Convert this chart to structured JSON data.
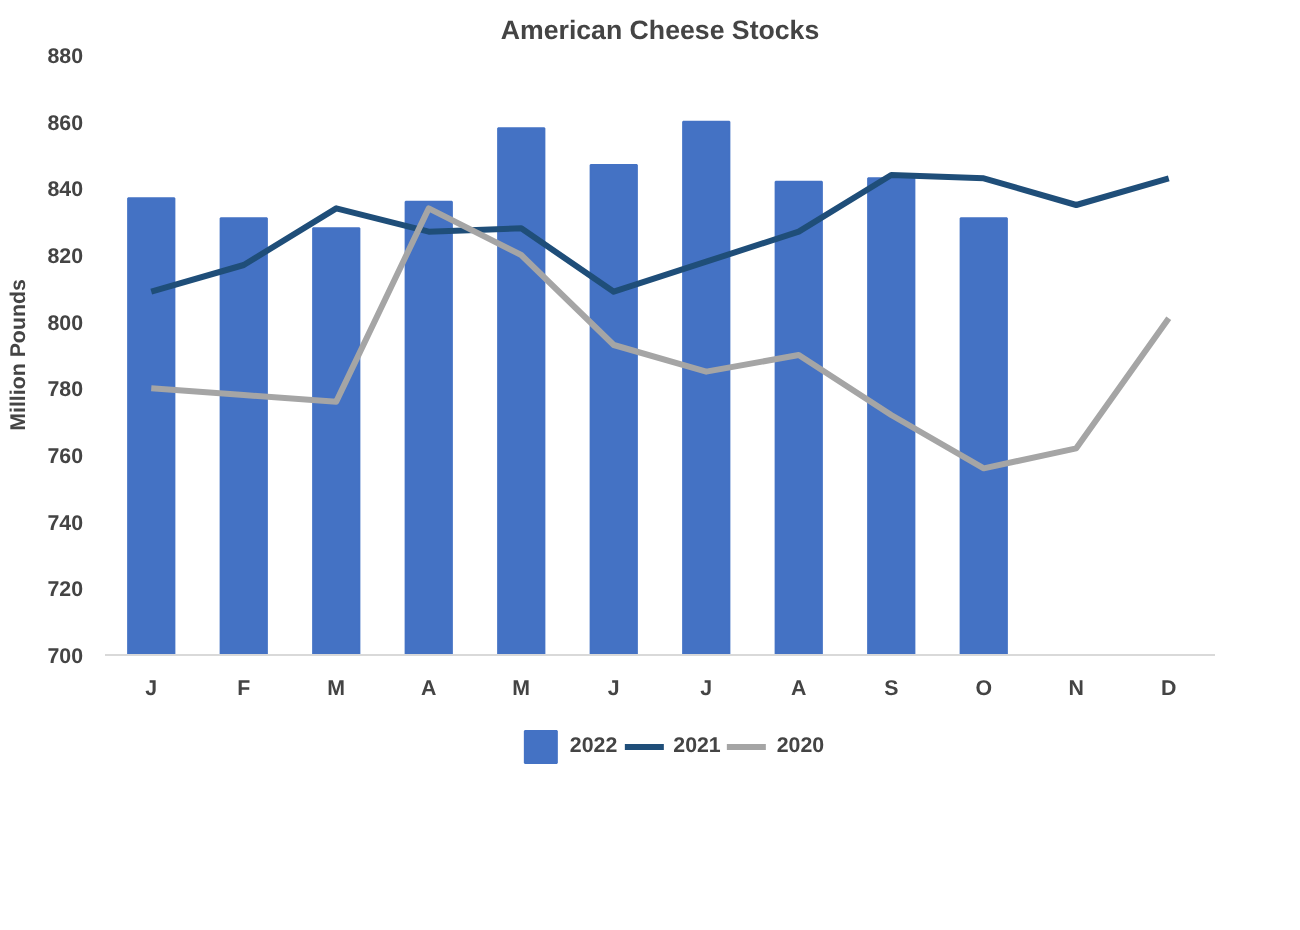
{
  "chart_data": {
    "type": "bar",
    "title": "American Cheese Stocks",
    "ylabel": "Million Pounds",
    "categories": [
      "J",
      "F",
      "M",
      "A",
      "M",
      "J",
      "J",
      "A",
      "S",
      "O",
      "N",
      "D"
    ],
    "series": [
      {
        "name": "2022",
        "color": "#4472c4",
        "values": [
          837,
          831,
          828,
          836,
          858,
          847,
          860,
          842,
          843,
          831,
          null,
          null
        ]
      },
      {
        "name": "2021",
        "type": "line",
        "color": "#1f4e79",
        "values": [
          809,
          817,
          834,
          827,
          828,
          809,
          818,
          827,
          844,
          843,
          835,
          843
        ]
      },
      {
        "name": "2020",
        "type": "line",
        "color": "#a5a5a5",
        "values": [
          780,
          778,
          776,
          834,
          820,
          793,
          785,
          790,
          772,
          756,
          762,
          801
        ]
      }
    ],
    "ylim": [
      700,
      880
    ],
    "yticks": [
      700,
      720,
      740,
      760,
      780,
      800,
      820,
      840,
      860,
      880
    ],
    "grid": false,
    "legend": "bottom"
  }
}
